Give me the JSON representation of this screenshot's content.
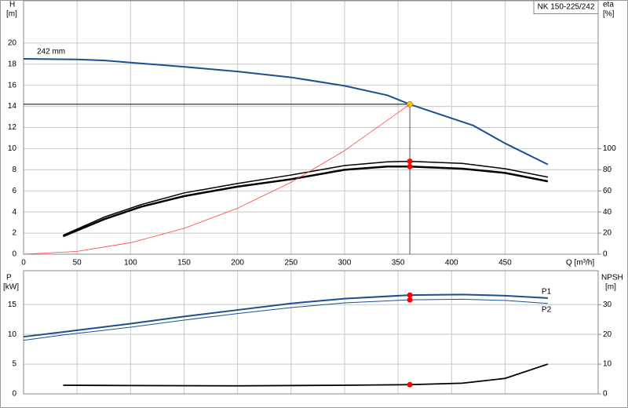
{
  "chart_data": [
    {
      "type": "line",
      "annotation": "NK 150-225/242",
      "ylabel": "H",
      "yunit": "[m]",
      "y2label": "eta",
      "y2unit": "[%]",
      "xlabel": "Q [m³/h]",
      "xlim": [
        0,
        537
      ],
      "xticks": [
        0,
        50,
        100,
        150,
        200,
        250,
        300,
        350,
        400,
        450
      ],
      "ylim": [
        0,
        24
      ],
      "yticks": [
        0,
        2,
        4,
        6,
        8,
        10,
        12,
        14,
        16,
        18,
        20
      ],
      "y2lim": [
        0,
        240
      ],
      "y2ticks": [
        0,
        20,
        40,
        60,
        80,
        100
      ],
      "grid": true,
      "operating_x": 361,
      "series": [
        {
          "name": "242 mm",
          "color": "#1c4f8f",
          "width": 2,
          "marker_color": "#ffcc00",
          "guides": true,
          "x": [
            0,
            50,
            75,
            100,
            150,
            200,
            250,
            300,
            340,
            361,
            420,
            450,
            490
          ],
          "values": [
            18.5,
            18.45,
            18.35,
            18.15,
            17.75,
            17.3,
            16.75,
            15.95,
            15.05,
            14.2,
            12.2,
            10.5,
            8.5
          ]
        },
        {
          "color": "#000000",
          "width": 1.5,
          "axis": "y2",
          "marker_color": "#ff0000",
          "x": [
            37,
            75,
            110,
            150,
            200,
            250,
            300,
            340,
            361,
            410,
            450,
            490
          ],
          "values": [
            18,
            35,
            47,
            58,
            67,
            75,
            84,
            87.5,
            88,
            86,
            81,
            73
          ]
        },
        {
          "color": "#000000",
          "width": 2.5,
          "axis": "y2",
          "marker_color": "#ff0000",
          "x": [
            37,
            75,
            110,
            150,
            200,
            250,
            300,
            340,
            361,
            410,
            450,
            490
          ],
          "values": [
            17,
            33,
            45,
            55,
            64,
            71,
            80,
            83,
            83,
            81,
            77,
            69
          ]
        },
        {
          "color": "#ff4040",
          "width": 0.8,
          "x": [
            0,
            50,
            100,
            150,
            200,
            250,
            300,
            361
          ],
          "values": [
            0,
            0.27,
            1.09,
            2.45,
            4.36,
            6.81,
            9.81,
            14.2
          ]
        }
      ]
    },
    {
      "type": "line",
      "ylabel": "P",
      "yunit": "[kW]",
      "y2label": "NPSH",
      "y2unit": "[m]",
      "xlim": [
        0,
        537
      ],
      "xticks": [
        0,
        50,
        100,
        150,
        200,
        250,
        300,
        350,
        400,
        450
      ],
      "xtick_labels": false,
      "ylim": [
        0,
        20.7
      ],
      "yticks": [
        0,
        5,
        10,
        15
      ],
      "y2lim": [
        0,
        41.4
      ],
      "y2ticks": [
        0,
        10,
        20,
        30
      ],
      "grid": true,
      "operating_x": 361,
      "series": [
        {
          "name": "P1",
          "color": "#1c4f8f",
          "width": 2,
          "marker_color": "#ff0000",
          "x": [
            0,
            37,
            100,
            150,
            200,
            250,
            300,
            361,
            410,
            450,
            490
          ],
          "values": [
            9.6,
            10.4,
            11.8,
            13.0,
            14.1,
            15.2,
            16.0,
            16.6,
            16.7,
            16.5,
            16.1
          ]
        },
        {
          "name": "P2",
          "color": "#1c4f8f",
          "width": 1,
          "marker_color": "#ff0000",
          "x": [
            0,
            37,
            100,
            150,
            200,
            250,
            300,
            361,
            410,
            450,
            490
          ],
          "values": [
            9.0,
            9.9,
            11.2,
            12.4,
            13.5,
            14.5,
            15.3,
            15.8,
            15.9,
            15.7,
            15.2
          ]
        },
        {
          "color": "#000000",
          "width": 1.8,
          "axis": "y2",
          "marker_color": "#ff0000",
          "x": [
            37,
            100,
            200,
            300,
            361,
            410,
            450,
            490
          ],
          "values": [
            2.9,
            2.8,
            2.7,
            2.9,
            3.1,
            3.6,
            5.2,
            10
          ]
        }
      ]
    }
  ]
}
